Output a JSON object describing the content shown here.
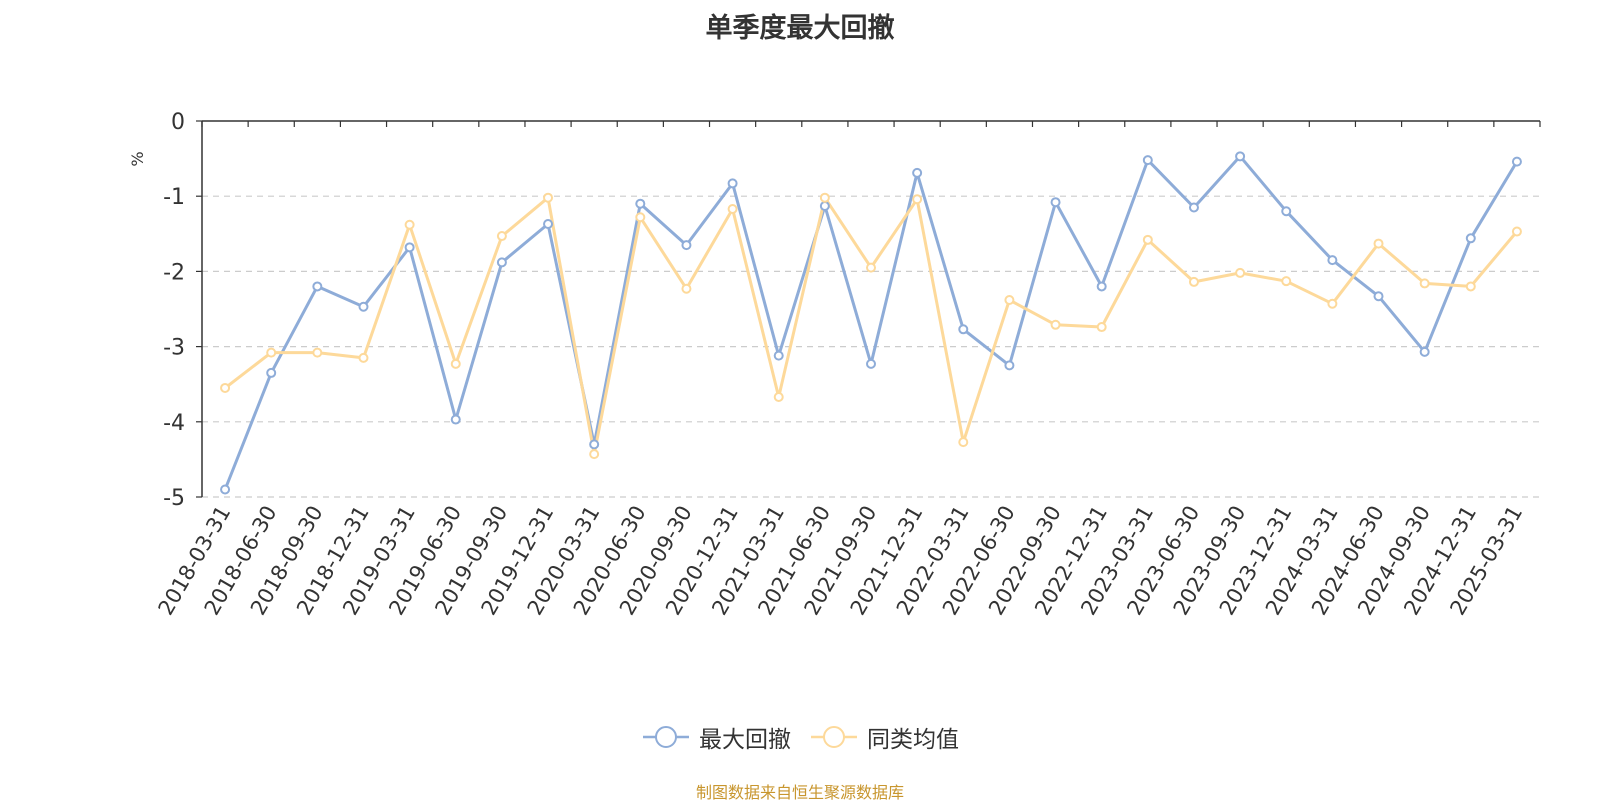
{
  "chart_data": {
    "type": "line",
    "title": "单季度最大回撤",
    "ylabel": "%",
    "xlabel": "",
    "ylim": [
      -5,
      0
    ],
    "yticks": [
      0,
      -1,
      -2,
      -3,
      -4,
      -5
    ],
    "grid": "horizontal dashed",
    "legend_position": "bottom-center",
    "categories": [
      "2018-03-31",
      "2018-06-30",
      "2018-09-30",
      "2018-12-31",
      "2019-03-31",
      "2019-06-30",
      "2019-09-30",
      "2019-12-31",
      "2020-03-31",
      "2020-06-30",
      "2020-09-30",
      "2020-12-31",
      "2021-03-31",
      "2021-06-30",
      "2021-09-30",
      "2021-12-31",
      "2022-03-31",
      "2022-06-30",
      "2022-09-30",
      "2022-12-31",
      "2023-03-31",
      "2023-06-30",
      "2023-09-30",
      "2023-12-31",
      "2024-03-31",
      "2024-06-30",
      "2024-09-30",
      "2024-12-31",
      "2025-03-31"
    ],
    "series": [
      {
        "name": "最大回撤",
        "color": "#8eacd8",
        "values": [
          -4.9,
          -3.35,
          -2.2,
          -2.47,
          -1.68,
          -3.97,
          -1.88,
          -1.37,
          -4.3,
          -1.1,
          -1.65,
          -0.83,
          -3.12,
          -1.13,
          -3.23,
          -0.69,
          -2.77,
          -3.25,
          -1.08,
          -2.2,
          -0.52,
          -1.15,
          -0.47,
          -1.2,
          -1.85,
          -2.33,
          -3.07,
          -1.56,
          -0.54
        ]
      },
      {
        "name": "同类均值",
        "color": "#fdd99a",
        "values": [
          -3.55,
          -3.08,
          -3.08,
          -3.15,
          -1.38,
          -3.23,
          -1.53,
          -1.02,
          -4.43,
          -1.28,
          -2.23,
          -1.17,
          -3.67,
          -1.02,
          -1.95,
          -1.04,
          -4.27,
          -2.38,
          -2.71,
          -2.74,
          -1.58,
          -2.14,
          -2.02,
          -2.13,
          -2.43,
          -1.63,
          -2.16,
          -2.2,
          -1.47
        ]
      }
    ]
  },
  "source_text": "制图数据来自恒生聚源数据库"
}
